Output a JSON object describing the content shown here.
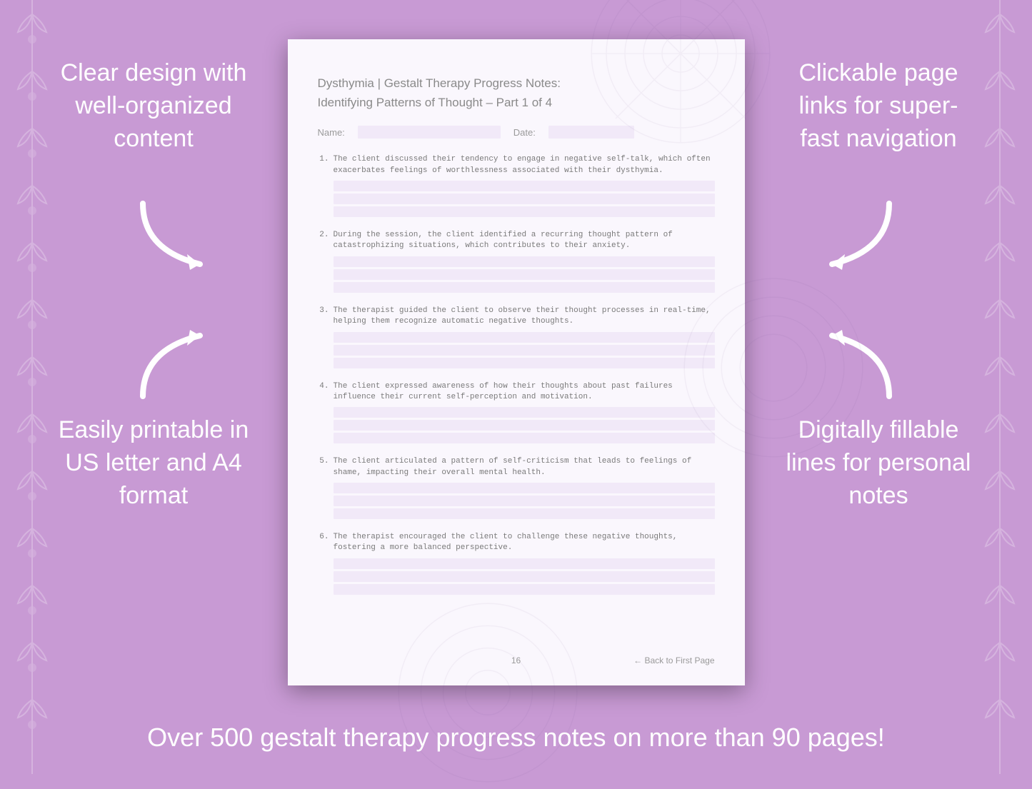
{
  "background_color": "#c89ad4",
  "callouts": {
    "top_left": "Clear design with well-organized content",
    "top_right": "Clickable page links for super-fast navigation",
    "bottom_left": "Easily printable in US letter and A4 format",
    "bottom_right": "Digitally fillable lines for personal notes"
  },
  "bottom_banner": "Over 500 gestalt therapy progress notes on more than 90 pages!",
  "page": {
    "title_line1": "Dysthymia | Gestalt Therapy Progress Notes:",
    "title_line2": "Identifying Patterns of Thought  – Part 1 of 4",
    "name_label": "Name:",
    "date_label": "Date:",
    "items": [
      {
        "num": "1.",
        "text": "The client discussed their tendency to engage in negative self-talk, which often exacerbates feelings of worthlessness associated with their dysthymia."
      },
      {
        "num": "2.",
        "text": "During the session, the client identified a recurring thought pattern of catastrophizing situations, which contributes to their anxiety."
      },
      {
        "num": "3.",
        "text": "The therapist guided the client to observe their thought processes in real-time, helping them recognize automatic negative thoughts."
      },
      {
        "num": "4.",
        "text": "The client expressed awareness of how their thoughts about past failures influence their current self-perception and motivation."
      },
      {
        "num": "5.",
        "text": "The client articulated a pattern of self-criticism that leads to feelings of shame, impacting their overall mental health."
      },
      {
        "num": "6.",
        "text": "The therapist encouraged the client to challenge these negative thoughts, fostering a more balanced perspective."
      }
    ],
    "page_number": "16",
    "back_link": "← Back to First Page"
  },
  "styling": {
    "callout_color": "#ffffff",
    "callout_fontsize": 34,
    "page_bg": "#faf7fd",
    "fill_line_color": "#f1e9f8",
    "page_text_color": "#8a8a8a",
    "item_font": "monospace",
    "shadow": "0 8px 30px rgba(0,0,0,0.35)"
  }
}
